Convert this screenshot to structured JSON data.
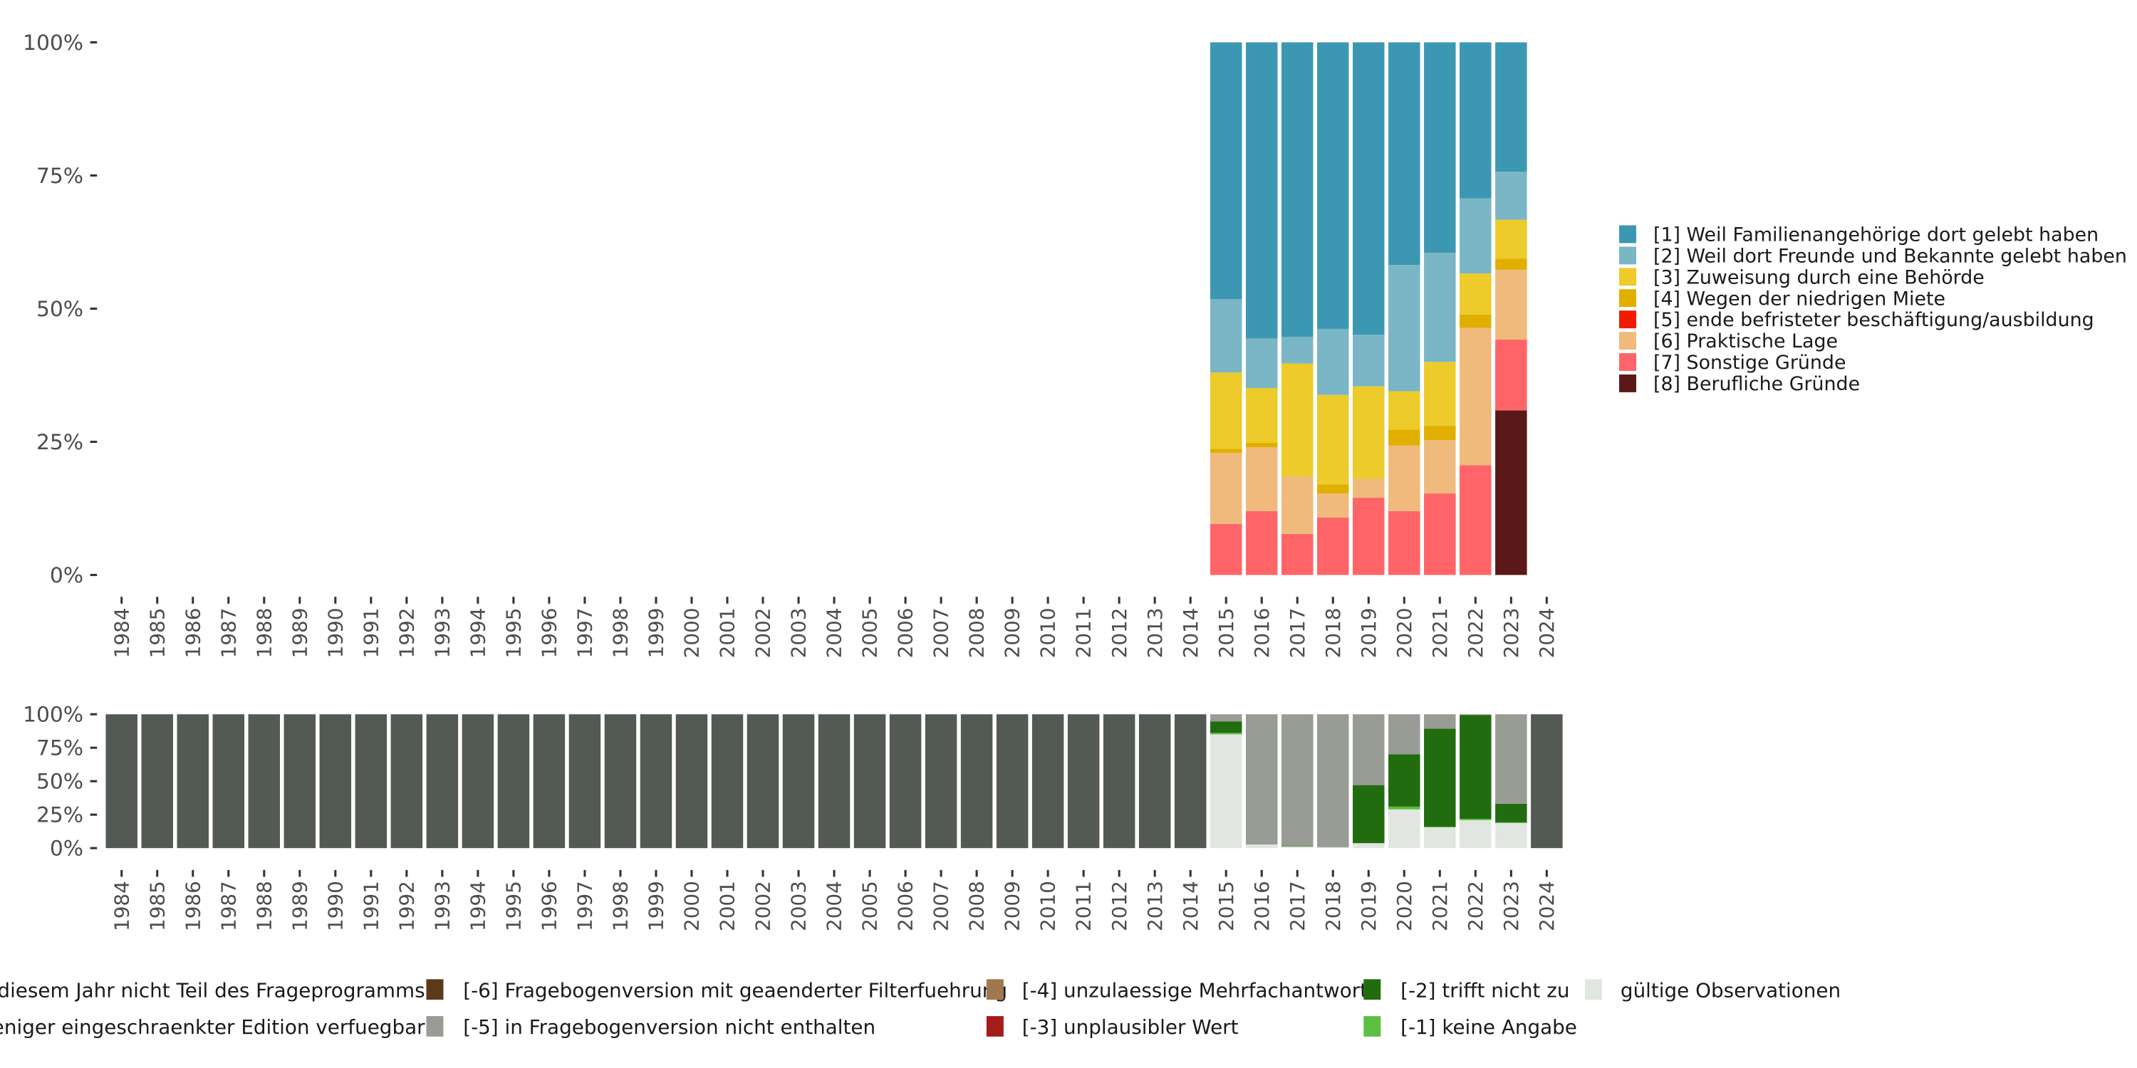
{
  "chart_data": [
    {
      "type": "bar",
      "stacked": true,
      "title": "",
      "xlabel": "",
      "ylabel": "",
      "ylim": [
        0,
        100
      ],
      "y_ticks": [
        "0%",
        "25%",
        "50%",
        "75%",
        "100%"
      ],
      "categories": [
        "1984",
        "1985",
        "1986",
        "1987",
        "1988",
        "1989",
        "1990",
        "1991",
        "1992",
        "1993",
        "1994",
        "1995",
        "1996",
        "1997",
        "1998",
        "1999",
        "2000",
        "2001",
        "2002",
        "2003",
        "2004",
        "2005",
        "2006",
        "2007",
        "2008",
        "2009",
        "2010",
        "2011",
        "2012",
        "2013",
        "2014",
        "2015",
        "2016",
        "2017",
        "2018",
        "2019",
        "2020",
        "2021",
        "2022",
        "2023",
        "2024"
      ],
      "legend_position": "right",
      "series": [
        {
          "name": "[8] Berufliche Gründe",
          "color": "#5a1918",
          "values": {
            "2023": 30.9
          }
        },
        {
          "name": "[7] Sonstige Gründe",
          "color": "#ff6468",
          "values": {
            "2015": 9.6,
            "2016": 12.0,
            "2017": 7.7,
            "2018": 10.8,
            "2019": 14.5,
            "2020": 12.0,
            "2021": 15.3,
            "2022": 20.6,
            "2023": 13.3
          }
        },
        {
          "name": "[6] Praktische Lage",
          "color": "#f0ba7d",
          "values": {
            "2015": 13.3,
            "2016": 12.0,
            "2017": 10.8,
            "2018": 4.5,
            "2019": 3.6,
            "2020": 12.3,
            "2021": 10.0,
            "2022": 25.8,
            "2023": 13.1
          }
        },
        {
          "name": "[5] ende befristeter beschäftigung/ausbildung",
          "color": "#f21a00",
          "values": {}
        },
        {
          "name": "[4] Wegen der niedrigen Miete",
          "color": "#e1af00",
          "values": {
            "2015": 0.8,
            "2016": 0.8,
            "2018": 1.7,
            "2020": 3.0,
            "2021": 2.7,
            "2022": 2.5,
            "2023": 2.1
          }
        },
        {
          "name": "[3] Zuweisung durch eine Behörde",
          "color": "#eccb2b",
          "values": {
            "2015": 14.3,
            "2016": 10.3,
            "2017": 21.2,
            "2018": 16.8,
            "2019": 17.3,
            "2020": 7.2,
            "2021": 12.0,
            "2022": 7.7,
            "2023": 7.3
          }
        },
        {
          "name": "[2] Weil dort Freunde und Bekannte gelebt haben",
          "color": "#7ab6c5",
          "values": {
            "2015": 13.8,
            "2016": 9.3,
            "2017": 5.0,
            "2018": 12.4,
            "2019": 9.7,
            "2020": 23.7,
            "2021": 20.5,
            "2022": 14.1,
            "2023": 9.0
          }
        },
        {
          "name": "[1] Weil Familienangehörige dort gelebt haben",
          "color": "#3c98b2",
          "values": {
            "2015": 48.2,
            "2016": 55.6,
            "2017": 55.3,
            "2018": 53.8,
            "2019": 54.9,
            "2020": 41.8,
            "2021": 39.5,
            "2022": 29.3,
            "2023": 24.3
          }
        }
      ],
      "legend_order": [
        7,
        6,
        5,
        4,
        3,
        2,
        1,
        0
      ]
    },
    {
      "type": "bar",
      "stacked": true,
      "title": "",
      "xlabel": "",
      "ylabel": "",
      "ylim": [
        0,
        100
      ],
      "y_ticks": [
        "0%",
        "25%",
        "50%",
        "75%",
        "100%"
      ],
      "categories": [
        "1984",
        "1985",
        "1986",
        "1987",
        "1988",
        "1989",
        "1990",
        "1991",
        "1992",
        "1993",
        "1994",
        "1995",
        "1996",
        "1997",
        "1998",
        "1999",
        "2000",
        "2001",
        "2002",
        "2003",
        "2004",
        "2005",
        "2006",
        "2007",
        "2008",
        "2009",
        "2010",
        "2011",
        "2012",
        "2013",
        "2014",
        "2015",
        "2016",
        "2017",
        "2018",
        "2019",
        "2020",
        "2021",
        "2022",
        "2023",
        "2024"
      ],
      "legend_position": "bottom",
      "series": [
        {
          "name": "gültige Observationen",
          "color": "#e1e6e1",
          "values": {
            "2015": 85.0,
            "2016": 2.7,
            "2017": 1.2,
            "2018": 0.7,
            "2019": 3.7,
            "2020": 28.9,
            "2021": 15.5,
            "2022": 20.9,
            "2023": 18.7
          }
        },
        {
          "name": "[-1] keine Angabe",
          "color": "#5dbf3f",
          "values": {
            "2015": 1.1,
            "2020": 2.1,
            "2021": 0.5,
            "2022": 1.0,
            "2023": 0.6
          }
        },
        {
          "name": "[-2] trifft nicht zu",
          "color": "#226c10",
          "values": {
            "2015": 8.6,
            "2017": 0.4,
            "2019": 43.4,
            "2020": 39.1,
            "2021": 73.3,
            "2022": 77.6,
            "2023": 13.9
          }
        },
        {
          "name": "[-3] unplausibler Wert",
          "color": "#a51c1c",
          "values": {}
        },
        {
          "name": "[-4] unzulaessige Mehrfachantwort",
          "color": "#a0784f",
          "values": {}
        },
        {
          "name": "[-5] in Fragebogenversion nicht enthalten",
          "color": "#989c95",
          "values": {
            "2015": 5.3,
            "2016": 97.3,
            "2017": 98.4,
            "2018": 99.3,
            "2019": 52.9,
            "2020": 29.9,
            "2021": 10.7,
            "2022": 0.5,
            "2023": 66.8
          }
        },
        {
          "name": "[-6] Fragebogenversion mit geaenderter Filterfuehrung",
          "color": "#5b3a1a",
          "values": {}
        },
        {
          "name": "eniger eingeschraenkter Edition verfuegbar",
          "color": "#989c95",
          "values": {}
        },
        {
          "name": "diesem Jahr nicht Teil des Frageprogramms",
          "color": "#535a53",
          "values": {
            "1984": 100,
            "1985": 100,
            "1986": 100,
            "1987": 100,
            "1988": 100,
            "1989": 100,
            "1990": 100,
            "1991": 100,
            "1992": 100,
            "1993": 100,
            "1994": 100,
            "1995": 100,
            "1996": 100,
            "1997": 100,
            "1998": 100,
            "1999": 100,
            "2000": 100,
            "2001": 100,
            "2002": 100,
            "2003": 100,
            "2004": 100,
            "2005": 100,
            "2006": 100,
            "2007": 100,
            "2008": 100,
            "2009": 100,
            "2010": 100,
            "2011": 100,
            "2012": 100,
            "2013": 100,
            "2014": 100,
            "2024": 100
          }
        }
      ],
      "legend_layout": [
        {
          "series": 8,
          "show_key": false
        },
        {
          "series": 7,
          "show_key": false
        },
        {
          "series": 6
        },
        {
          "series": 5
        },
        {
          "series": 4
        },
        {
          "series": 3
        },
        {
          "series": 2
        },
        {
          "series": 1
        },
        {
          "series": 0
        }
      ]
    }
  ]
}
